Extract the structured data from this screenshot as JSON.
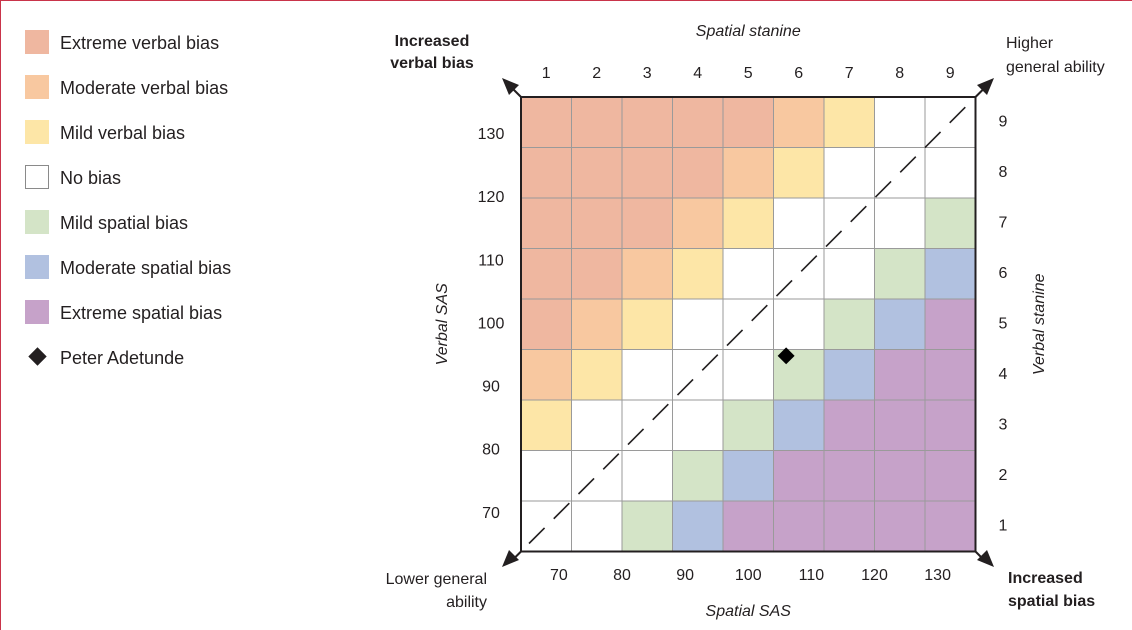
{
  "legend": {
    "items": [
      {
        "label": "Extreme verbal bias",
        "color": "#efb7a0"
      },
      {
        "label": "Moderate verbal bias",
        "color": "#f8c8a0"
      },
      {
        "label": "Mild verbal bias",
        "color": "#fde6a7"
      },
      {
        "label": "No bias",
        "color": "#ffffff"
      },
      {
        "label": "Mild spatial bias",
        "color": "#d4e4c7"
      },
      {
        "label": "Moderate spatial bias",
        "color": "#b1c1e0"
      },
      {
        "label": "Extreme spatial bias",
        "color": "#c6a2c9"
      },
      {
        "label": "Peter Adetunde",
        "color": "#231f20"
      }
    ]
  },
  "chart_data": {
    "type": "heatmap",
    "xlabel": "Spatial SAS",
    "ylabel": "Verbal SAS",
    "top_axis_label": "Spatial stanine",
    "right_axis_label": "Verbal stanine",
    "x_ticks": [
      "70",
      "80",
      "90",
      "100",
      "110",
      "120",
      "130"
    ],
    "y_ticks": [
      "70",
      "80",
      "90",
      "100",
      "110",
      "120",
      "130"
    ],
    "top_ticks": [
      "1",
      "2",
      "3",
      "4",
      "5",
      "6",
      "7",
      "8",
      "9"
    ],
    "right_ticks": [
      "1",
      "2",
      "3",
      "4",
      "5",
      "6",
      "7",
      "8",
      "9"
    ],
    "x_range": [
      64,
      136
    ],
    "y_range": [
      64,
      136
    ],
    "bias_levels": [
      "Extreme verbal bias",
      "Moderate verbal bias",
      "Mild verbal bias",
      "No bias",
      "Mild spatial bias",
      "Moderate spatial bias",
      "Extreme spatial bias"
    ],
    "grid_rows_top_to_bottom": [
      [
        0,
        0,
        0,
        0,
        0,
        1,
        2,
        3,
        3
      ],
      [
        0,
        0,
        0,
        0,
        1,
        2,
        3,
        3,
        3
      ],
      [
        0,
        0,
        0,
        1,
        2,
        3,
        3,
        3,
        4
      ],
      [
        0,
        0,
        1,
        2,
        3,
        3,
        3,
        4,
        5
      ],
      [
        0,
        1,
        2,
        3,
        3,
        3,
        4,
        5,
        6
      ],
      [
        1,
        2,
        3,
        3,
        3,
        4,
        5,
        6,
        6
      ],
      [
        2,
        3,
        3,
        3,
        4,
        5,
        6,
        6,
        6
      ],
      [
        3,
        3,
        3,
        4,
        5,
        6,
        6,
        6,
        6
      ],
      [
        3,
        3,
        4,
        5,
        6,
        6,
        6,
        6,
        6
      ]
    ],
    "point": {
      "name": "Peter Adetunde",
      "x": 106,
      "y": 95
    },
    "corner_labels": {
      "top_left": [
        "Increased",
        "verbal bias"
      ],
      "top_right": [
        "Higher",
        "general ability"
      ],
      "bottom_left": [
        "Lower general",
        "ability"
      ],
      "bottom_right": [
        "Increased",
        "spatial bias"
      ]
    }
  }
}
